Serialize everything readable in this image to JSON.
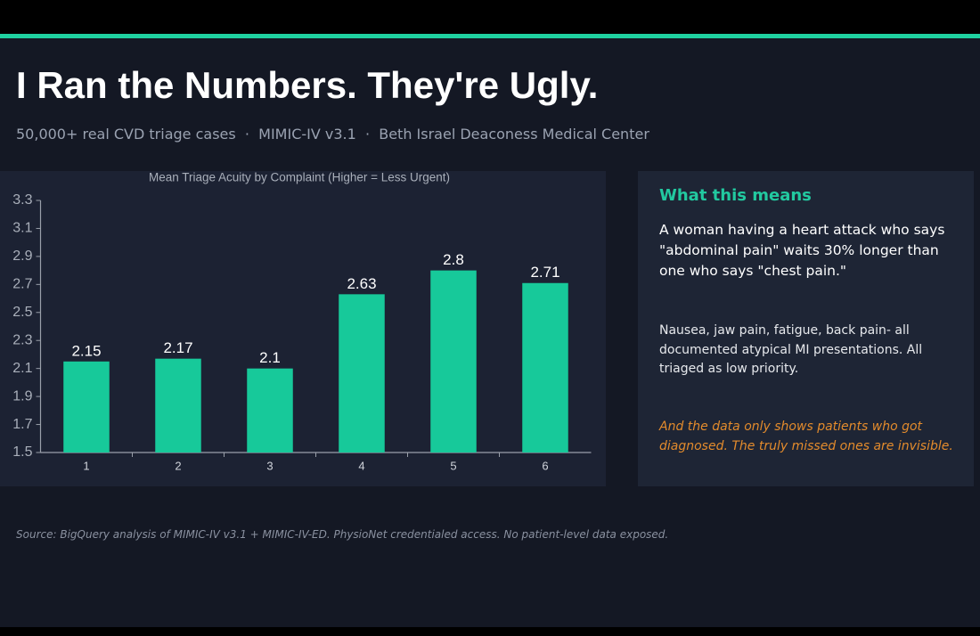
{
  "header": {
    "title": "I Ran the Numbers. They're Ugly.",
    "subtitle": "50,000+ real CVD triage cases  ·  MIMIC-IV v3.1  ·  Beth Israel Deaconess Medical Center"
  },
  "chart_data": {
    "type": "bar",
    "title": "Mean Triage Acuity by Complaint (Higher = Less Urgent)",
    "categories": [
      "1",
      "2",
      "3",
      "4",
      "5",
      "6"
    ],
    "values": [
      2.15,
      2.17,
      2.1,
      2.63,
      2.8,
      2.71
    ],
    "color": "#17c99a",
    "ylim": [
      1.5,
      3.3
    ],
    "yticks": [
      1.5,
      1.7,
      1.9,
      2.1,
      2.3,
      2.5,
      2.7,
      2.9,
      3.1,
      3.3
    ],
    "grid": false
  },
  "panel": {
    "heading": "What this means",
    "lead": "A woman having a heart attack who says \"abdominal pain\" waits 30% longer than one who says \"chest pain.\"",
    "detail": "Nausea, jaw pain, fatigue, back pain- all documented atypical MI presentations. All triaged as low priority.",
    "note": "And the data only shows patients who got diagnosed. The truly missed ones are invisible."
  },
  "footer": {
    "source": "Source: BigQuery analysis of MIMIC-IV v3.1 + MIMIC-IV-ED. PhysioNet credentialed access. No patient-level data exposed."
  }
}
